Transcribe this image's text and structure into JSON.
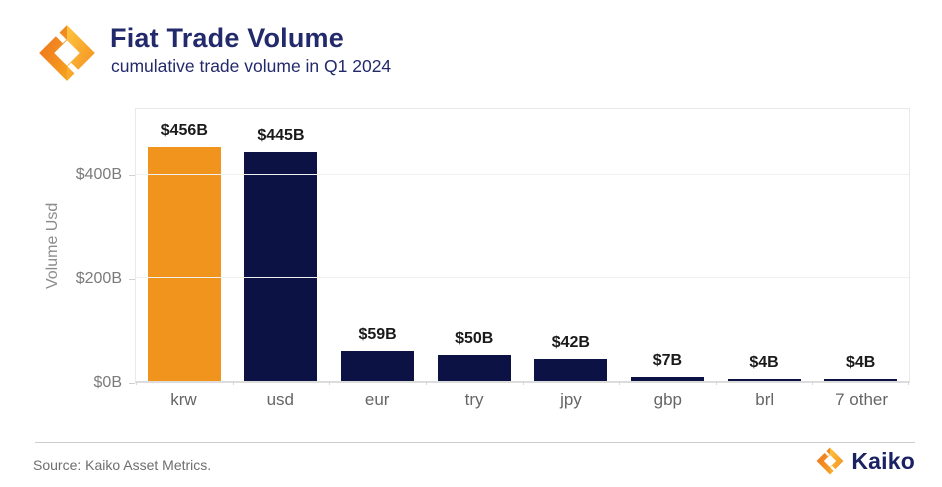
{
  "header": {
    "title": "Fiat Trade Volume",
    "subtitle": "cumulative trade volume in Q1 2024",
    "logo_icon": "kaiko-mark"
  },
  "chart_data": {
    "type": "bar",
    "title": "Fiat Trade Volume",
    "subtitle": "cumulative trade volume in Q1 2024",
    "categories": [
      "krw",
      "usd",
      "eur",
      "try",
      "jpy",
      "gbp",
      "brl",
      "7 other"
    ],
    "values": [
      456,
      445,
      59,
      50,
      42,
      7,
      4,
      4
    ],
    "value_labels": [
      "$456B",
      "$445B",
      "$59B",
      "$50B",
      "$42B",
      "$7B",
      "$4B",
      "$4B"
    ],
    "bar_colors": [
      "#F0941E",
      "#0D1245",
      "#0D1245",
      "#0D1245",
      "#0D1245",
      "#0D1245",
      "#0D1245",
      "#0D1245"
    ],
    "xlabel": "",
    "ylabel": "Volume Usd",
    "ylim": [
      0,
      529
    ],
    "yticks": [
      {
        "value": 0,
        "label": "$0B"
      },
      {
        "value": 200,
        "label": "$200B"
      },
      {
        "value": 400,
        "label": "$400B"
      }
    ],
    "grid": true,
    "legend_position": "none",
    "highlight_color": "#F0941E",
    "base_color": "#0D1245"
  },
  "footer": {
    "source": "Source: Kaiko Asset Metrics.",
    "brand": "Kaiko",
    "brand_logo_icon": "kaiko-mark"
  }
}
